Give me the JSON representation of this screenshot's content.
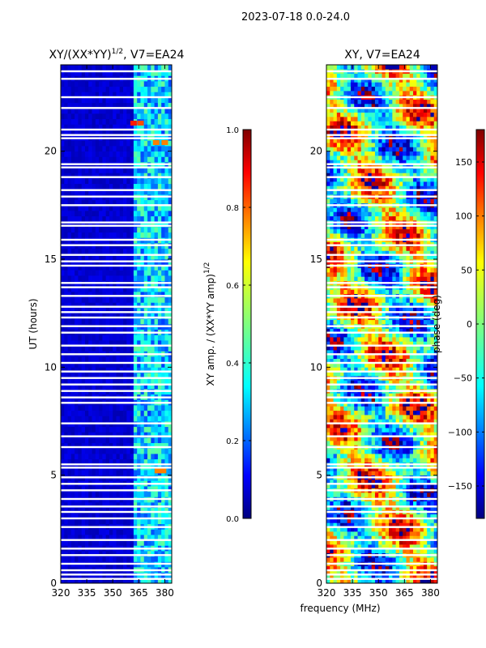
{
  "suptitle": "2023-07-18 0.0-24.0",
  "chart_data": [
    {
      "type": "heatmap",
      "title": "XY/(XX*YY)^1/2, V7=EA24",
      "title_main": "XY/(XX*YY)",
      "title_sup": "1/2",
      "title_tail": ", V7=EA24",
      "xlabel": "",
      "ylabel": "UT (hours)",
      "xlim": [
        320,
        384
      ],
      "ylim": [
        0,
        24
      ],
      "xticks": [
        320,
        335,
        350,
        365,
        380
      ],
      "yticks": [
        0,
        5,
        10,
        15,
        20
      ],
      "colormap": "jet",
      "colorbar": {
        "label": "XY amp. / (XX*YY amp)^1/2",
        "label_main": "XY amp. / (XX*YY amp)",
        "label_sup": "1/2",
        "range": [
          0.0,
          1.0
        ],
        "ticks": [
          "0.0",
          "0.2",
          "0.4",
          "0.6",
          "0.8",
          "1.0"
        ]
      },
      "mostly_low_region": {
        "freq_range_mhz": [
          320,
          362
        ],
        "typical_value": 0.05
      },
      "elevated_region": {
        "freq_range_mhz": [
          362,
          384
        ],
        "typical_value": 0.3
      },
      "hot_spots": [
        {
          "freq_mhz": 362,
          "ut_hours": 21.3,
          "value": 0.85
        },
        {
          "freq_mhz": 366,
          "ut_hours": 21.3,
          "value": 0.8
        },
        {
          "freq_mhz": 375,
          "ut_hours": 20.4,
          "value": 0.75
        },
        {
          "freq_mhz": 380,
          "ut_hours": 20.4,
          "value": 0.75
        },
        {
          "freq_mhz": 376,
          "ut_hours": 5.2,
          "value": 0.75
        },
        {
          "freq_mhz": 379,
          "ut_hours": 5.2,
          "value": 0.75
        }
      ],
      "flagged_gaps_ut_hours": [
        23.7,
        23.35,
        22.5,
        22.0,
        21.0,
        20.75,
        20.6,
        19.4,
        19.25,
        18.8,
        18.2,
        17.9,
        17.5,
        16.7,
        16.55,
        15.9,
        15.65,
        15.2,
        14.9,
        14.7,
        13.9,
        13.7,
        13.3,
        12.8,
        12.55,
        12.3,
        11.9,
        11.6,
        11.0,
        10.6,
        10.2,
        9.8,
        9.5,
        9.2,
        8.9,
        8.6,
        8.35,
        7.4,
        6.8,
        6.3,
        5.5,
        5.35,
        4.9,
        4.6,
        4.3,
        3.9,
        3.55,
        3.3,
        3.0,
        2.6,
        2.0,
        1.6,
        1.3,
        0.9,
        0.6,
        0.4,
        0.2
      ]
    },
    {
      "type": "heatmap",
      "title": "XY, V7=EA24",
      "xlabel": "frequency (MHz)",
      "ylabel": "",
      "xlim": [
        320,
        384
      ],
      "ylim": [
        0,
        24
      ],
      "xticks": [
        320,
        335,
        350,
        365,
        380
      ],
      "yticks": [
        0,
        5,
        10,
        15,
        20
      ],
      "colormap": "jet",
      "colorbar": {
        "label": "phase (deg)",
        "range": [
          -180,
          180
        ],
        "ticks": [
          "−150",
          "−100",
          "−50",
          "0",
          "50",
          "100",
          "150"
        ],
        "tick_values": [
          -150,
          -100,
          -50,
          0,
          50,
          100,
          150
        ]
      },
      "description_values": "phase noise spanning -180 to 180 deg",
      "flagged_gaps_ut_hours": [
        23.7,
        23.35,
        22.5,
        22.0,
        21.0,
        20.75,
        20.6,
        19.4,
        19.25,
        18.8,
        18.2,
        17.9,
        17.5,
        16.7,
        16.55,
        15.9,
        15.65,
        15.2,
        14.9,
        14.7,
        13.9,
        13.7,
        13.3,
        12.8,
        12.55,
        12.3,
        11.9,
        11.6,
        11.0,
        10.6,
        10.2,
        9.8,
        9.5,
        9.2,
        8.9,
        8.6,
        8.35,
        7.4,
        6.8,
        6.3,
        5.5,
        5.35,
        4.9,
        4.6,
        4.3,
        3.9,
        3.55,
        3.3,
        3.0,
        2.6,
        2.0,
        1.6,
        1.3,
        0.9,
        0.6,
        0.4,
        0.2
      ]
    }
  ]
}
